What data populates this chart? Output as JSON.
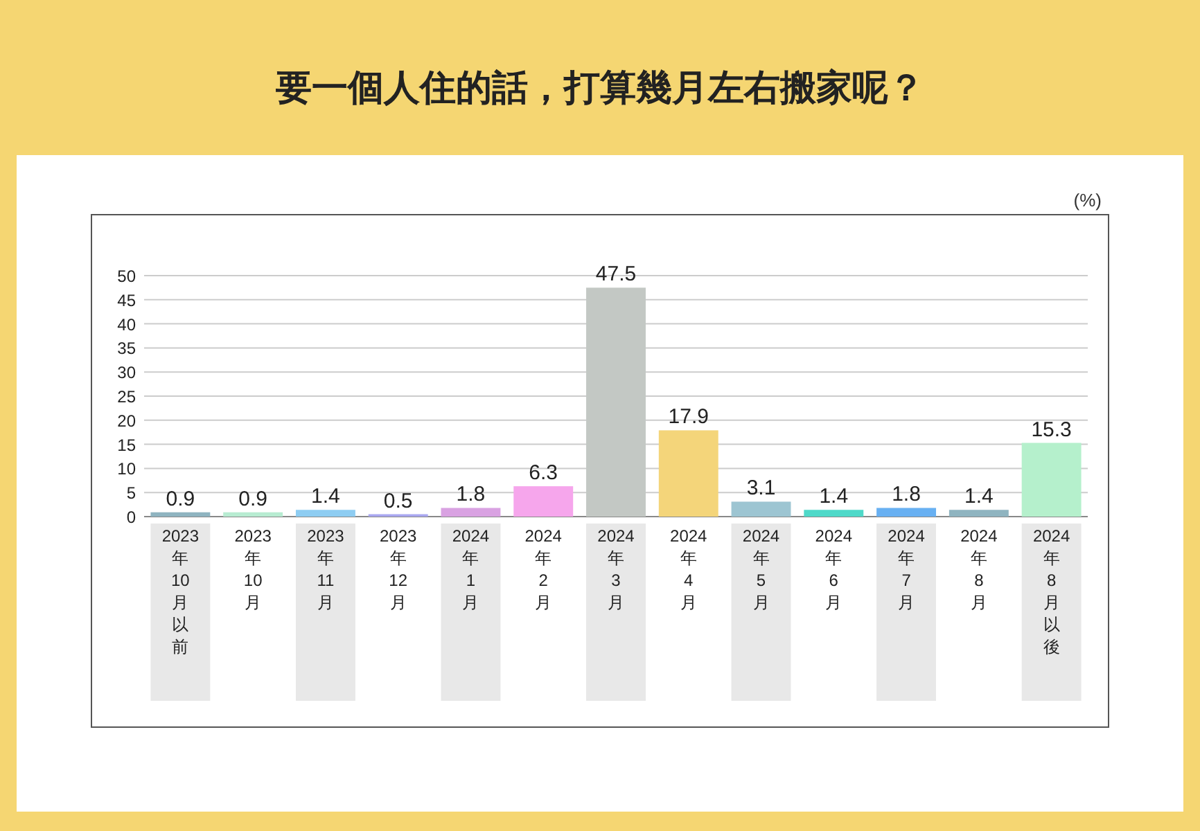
{
  "chart_data": {
    "type": "bar",
    "title": "要一個人住的話，打算幾月左右搬家呢？",
    "ylabel": "(%)",
    "categories": [
      "2023年10月以前",
      "2023年10月",
      "2023年11月",
      "2023年12月",
      "2024年1月",
      "2024年2月",
      "2024年3月",
      "2024年4月",
      "2024年5月",
      "2024年6月",
      "2024年7月",
      "2024年8月",
      "2024年8月以後"
    ],
    "values": [
      0.9,
      0.9,
      1.4,
      0.5,
      1.8,
      6.3,
      47.5,
      17.9,
      3.1,
      1.4,
      1.8,
      1.4,
      15.3
    ],
    "colors": [
      "#8fb4c0",
      "#b8ecd2",
      "#8ecdf2",
      "#a9a7f0",
      "#d9a2e2",
      "#f6a6ec",
      "#c3c8c4",
      "#f4d57a",
      "#9dc5d2",
      "#4fd9c9",
      "#68b0f2",
      "#8fb4c0",
      "#b5f0cc"
    ],
    "ylim": [
      0,
      50
    ],
    "yticks": [
      0,
      5,
      10,
      15,
      20,
      25,
      30,
      35,
      40,
      45,
      50
    ],
    "grid": "y",
    "data_labels": true
  }
}
